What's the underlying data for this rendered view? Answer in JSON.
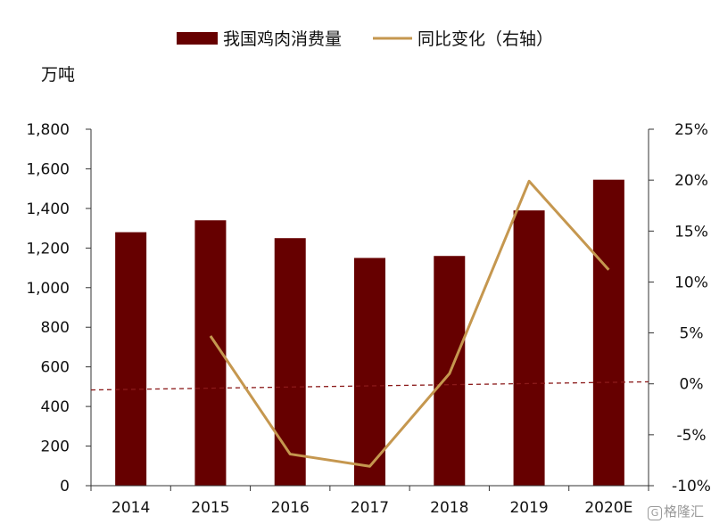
{
  "chart_data": {
    "type": "bar+line",
    "categories": [
      "2014",
      "2015",
      "2016",
      "2017",
      "2018",
      "2019",
      "2020E"
    ],
    "series": [
      {
        "name": "我国鸡肉消费量",
        "type": "bar",
        "axis": "left",
        "values": [
          1280,
          1340,
          1250,
          1150,
          1160,
          1390,
          1545
        ]
      },
      {
        "name": "同比变化（右轴）",
        "type": "line",
        "axis": "right",
        "values": [
          null,
          4.7,
          -6.9,
          -8.1,
          1.0,
          19.9,
          11.2
        ]
      }
    ],
    "left_axis": {
      "unit_label": "万吨",
      "min": 0,
      "max": 1800,
      "step": 200,
      "tick_labels": [
        "0",
        "200",
        "400",
        "600",
        "800",
        "1,000",
        "1,200",
        "1,400",
        "1,600",
        "1,800"
      ]
    },
    "right_axis": {
      "min": -10,
      "max": 25,
      "step": 5,
      "tick_labels": [
        "-10%",
        "-5%",
        "0%",
        "5%",
        "10%",
        "15%",
        "20%",
        "25%"
      ]
    },
    "trend_line": {
      "style": "dashed",
      "from_percent": -0.6,
      "to_percent": 0.2
    },
    "legend_position": "top-center",
    "grid": false,
    "colors": {
      "bar": "#660000",
      "line": "#c5974f",
      "trend": "#8b1a1a",
      "axis": "#333333"
    }
  },
  "watermark": {
    "icon_label": "G",
    "text": "格隆汇"
  }
}
